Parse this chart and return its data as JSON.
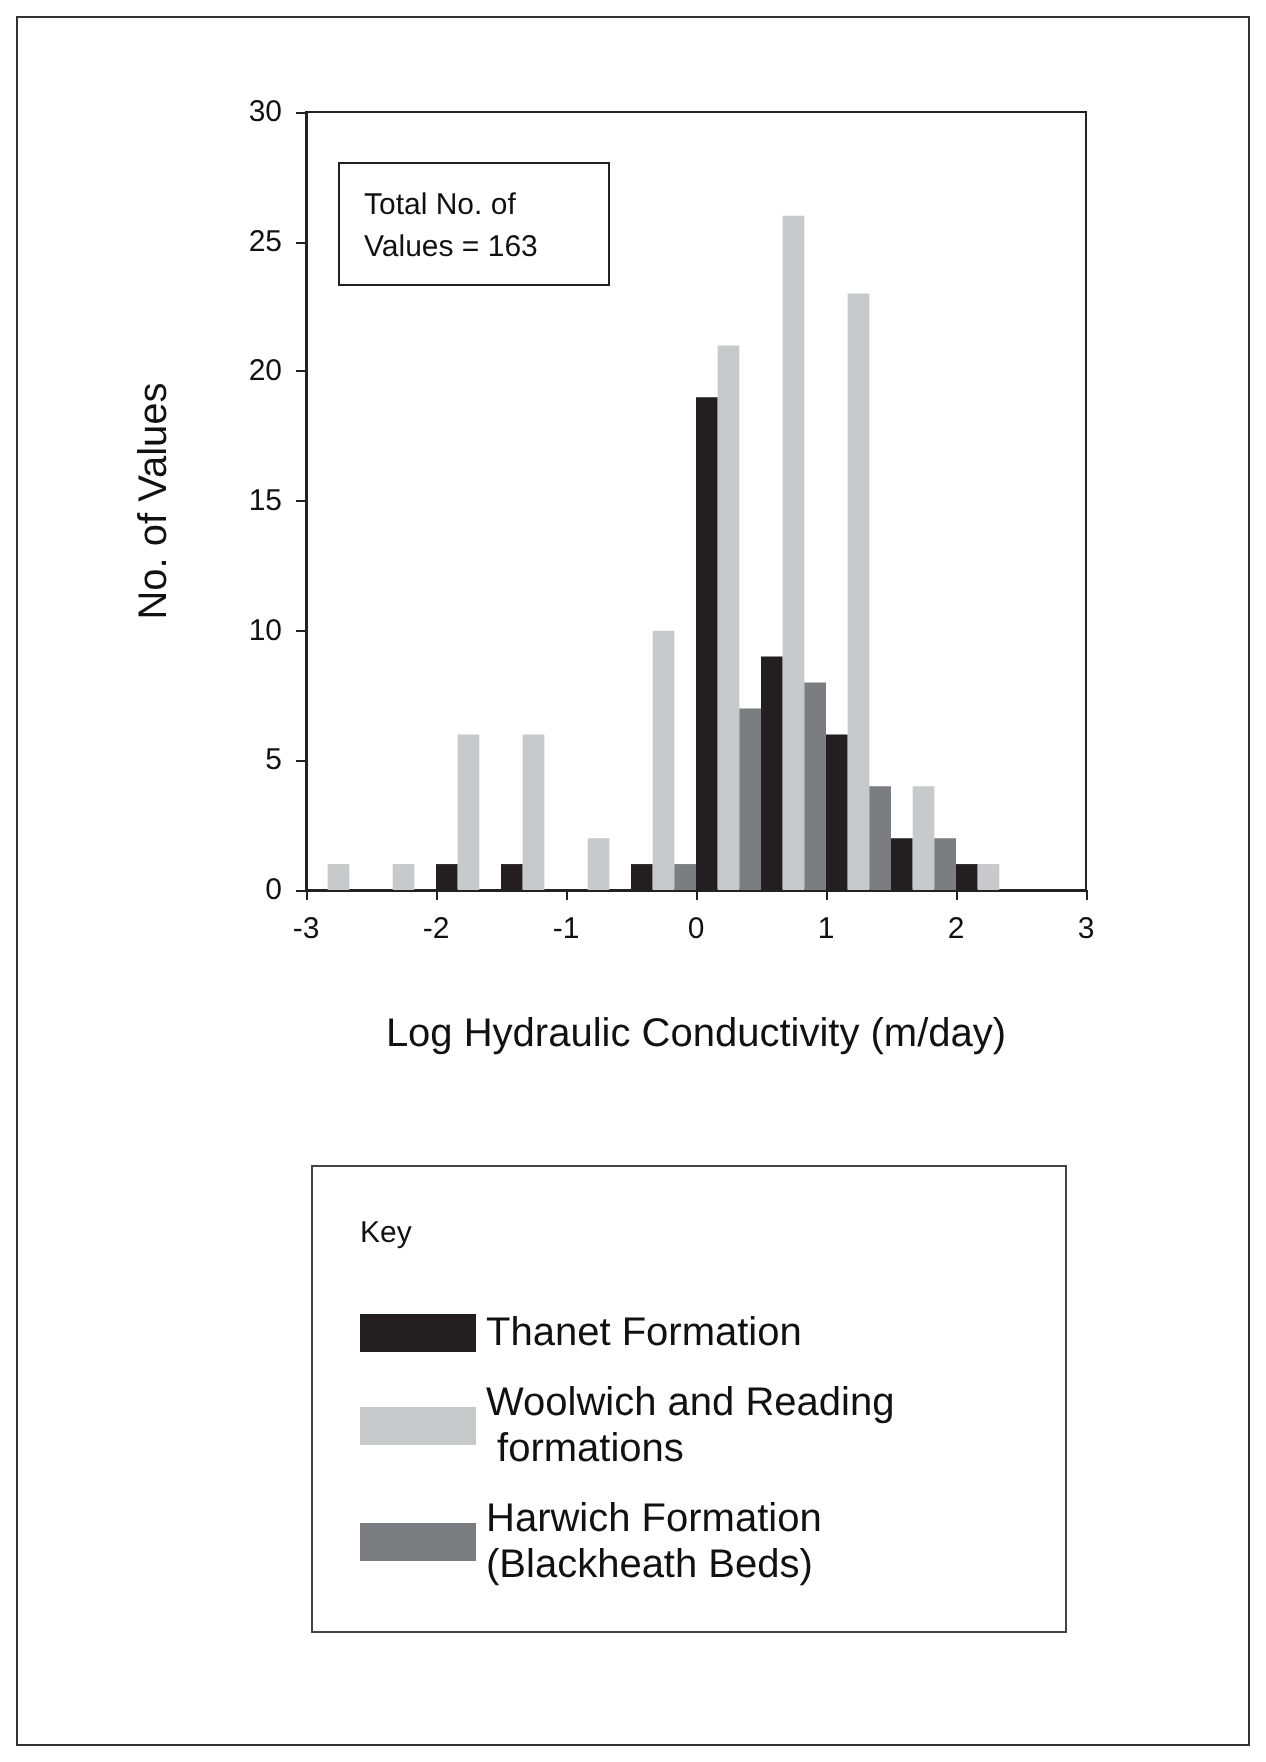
{
  "chart_data": {
    "type": "histogram",
    "xlabel": "Log Hydraulic Conductivity (m/day)",
    "ylabel": "No. of Values",
    "legend_title": "Key",
    "annotations": [
      "Total No. of Values = 163"
    ],
    "bins": [
      -3,
      -2.5,
      -2,
      -1.5,
      -1,
      -0.5,
      0,
      0.5,
      1,
      1.5,
      2,
      2.5
    ],
    "series": [
      {
        "name": "Thanet Formation",
        "color": "#231f20",
        "values": [
          0,
          0,
          1,
          1,
          0,
          1,
          19,
          9,
          6,
          2,
          1
        ]
      },
      {
        "name": "Woolwich and Reading formations",
        "color": "#c8c9cb",
        "values": [
          1,
          1,
          6,
          6,
          2,
          10,
          21,
          26,
          23,
          4,
          1
        ]
      },
      {
        "name": "Harwich Formation (Blackheath Beds)",
        "color": "#7c7d80",
        "values": [
          0,
          0,
          0,
          0,
          0,
          1,
          7,
          8,
          4,
          2,
          0
        ]
      }
    ],
    "xlim": [
      -3,
      3
    ],
    "xticks": [
      -3,
      -2,
      -1,
      0,
      1,
      2,
      3
    ],
    "ylim": [
      0,
      30
    ],
    "yticks": [
      0,
      5,
      10,
      15,
      20,
      25,
      30
    ],
    "grid": false,
    "legend": "bottom"
  }
}
